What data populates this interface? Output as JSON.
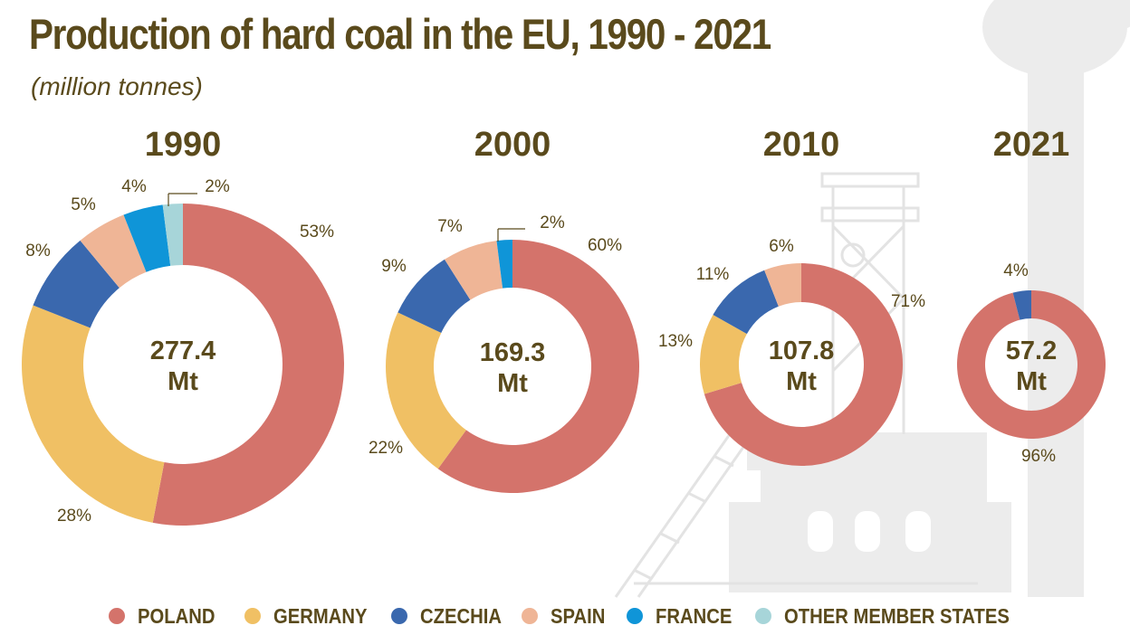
{
  "title": "Production of hard coal in the EU, 1990 - 2021",
  "subtitle": "(million tonnes)",
  "colors": {
    "text": "#5a4a1c",
    "poland": "#d4736b",
    "germany": "#f0c064",
    "czechia": "#3a68ae",
    "spain": "#efb596",
    "france": "#0f95d8",
    "other": "#a7d5d9",
    "background_art": "#e6e6e6"
  },
  "legend": [
    {
      "key": "poland",
      "label": "POLAND"
    },
    {
      "key": "germany",
      "label": "GERMANY"
    },
    {
      "key": "czechia",
      "label": "CZECHIA"
    },
    {
      "key": "spain",
      "label": "SPAIN"
    },
    {
      "key": "france",
      "label": "FRANCE"
    },
    {
      "key": "other",
      "label": "OTHER MEMBER STATES"
    }
  ],
  "chart_data": [
    {
      "type": "pie",
      "year": "1990",
      "total": "277.4",
      "unit": "Mt",
      "slices": [
        {
          "country": "POLAND",
          "key": "poland",
          "value": 53,
          "label": "53%"
        },
        {
          "country": "GERMANY",
          "key": "germany",
          "value": 28,
          "label": "28%"
        },
        {
          "country": "CZECHIA",
          "key": "czechia",
          "value": 8,
          "label": "8%"
        },
        {
          "country": "SPAIN",
          "key": "spain",
          "value": 5,
          "label": "5%"
        },
        {
          "country": "FRANCE",
          "key": "france",
          "value": 4,
          "label": "4%"
        },
        {
          "country": "OTHER MEMBER STATES",
          "key": "other",
          "value": 2,
          "label": "2%"
        }
      ]
    },
    {
      "type": "pie",
      "year": "2000",
      "total": "169.3",
      "unit": "Mt",
      "slices": [
        {
          "country": "POLAND",
          "key": "poland",
          "value": 60,
          "label": "60%"
        },
        {
          "country": "GERMANY",
          "key": "germany",
          "value": 22,
          "label": "22%"
        },
        {
          "country": "CZECHIA",
          "key": "czechia",
          "value": 9,
          "label": "9%"
        },
        {
          "country": "SPAIN",
          "key": "spain",
          "value": 7,
          "label": "7%"
        },
        {
          "country": "FRANCE",
          "key": "france",
          "value": 2,
          "label": "2%"
        }
      ]
    },
    {
      "type": "pie",
      "year": "2010",
      "total": "107.8",
      "unit": "Mt",
      "slices": [
        {
          "country": "POLAND",
          "key": "poland",
          "value": 71,
          "label": "71%"
        },
        {
          "country": "GERMANY",
          "key": "germany",
          "value": 13,
          "label": "13%"
        },
        {
          "country": "CZECHIA",
          "key": "czechia",
          "value": 11,
          "label": "11%"
        },
        {
          "country": "SPAIN",
          "key": "spain",
          "value": 6,
          "label": "6%"
        }
      ]
    },
    {
      "type": "pie",
      "year": "2021",
      "total": "57.2",
      "unit": "Mt",
      "slices": [
        {
          "country": "POLAND",
          "key": "poland",
          "value": 96,
          "label": "96%"
        },
        {
          "country": "CZECHIA",
          "key": "czechia",
          "value": 4,
          "label": "4%"
        }
      ]
    }
  ]
}
